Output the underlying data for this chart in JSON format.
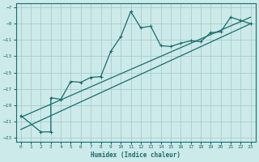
{
  "xlabel": "Humidex (Indice chaleur)",
  "bg_color": "#cceaea",
  "line_color": "#1a6b6b",
  "grid_color": "#aacccc",
  "xlim": [
    -0.5,
    23.5
  ],
  "ylim": [
    -23.5,
    -6.5
  ],
  "xticks": [
    0,
    1,
    2,
    3,
    4,
    5,
    6,
    7,
    8,
    9,
    10,
    11,
    12,
    13,
    14,
    15,
    16,
    17,
    18,
    19,
    20,
    21,
    22,
    23
  ],
  "yticks": [
    -23,
    -21,
    -19,
    -17,
    -15,
    -13,
    -11,
    -9,
    -7
  ],
  "data_x": [
    0,
    2,
    3,
    3,
    4,
    5,
    6,
    7,
    8,
    9,
    10,
    11,
    12,
    13,
    14,
    15,
    16,
    17,
    18,
    19,
    20,
    21,
    22,
    23
  ],
  "data_y": [
    -20.3,
    -22.3,
    -22.3,
    -18.1,
    -18.3,
    -16.1,
    -16.2,
    -15.6,
    -15.5,
    -12.4,
    -10.6,
    -7.5,
    -9.5,
    -9.3,
    -11.7,
    -11.8,
    -11.4,
    -11.1,
    -11.2,
    -10.1,
    -10.0,
    -8.2,
    -8.6,
    -9.0
  ],
  "line1_x": [
    0,
    23
  ],
  "line1_y": [
    -20.5,
    -8.2
  ],
  "line2_x": [
    0,
    23
  ],
  "line2_y": [
    -22.0,
    -9.0
  ]
}
